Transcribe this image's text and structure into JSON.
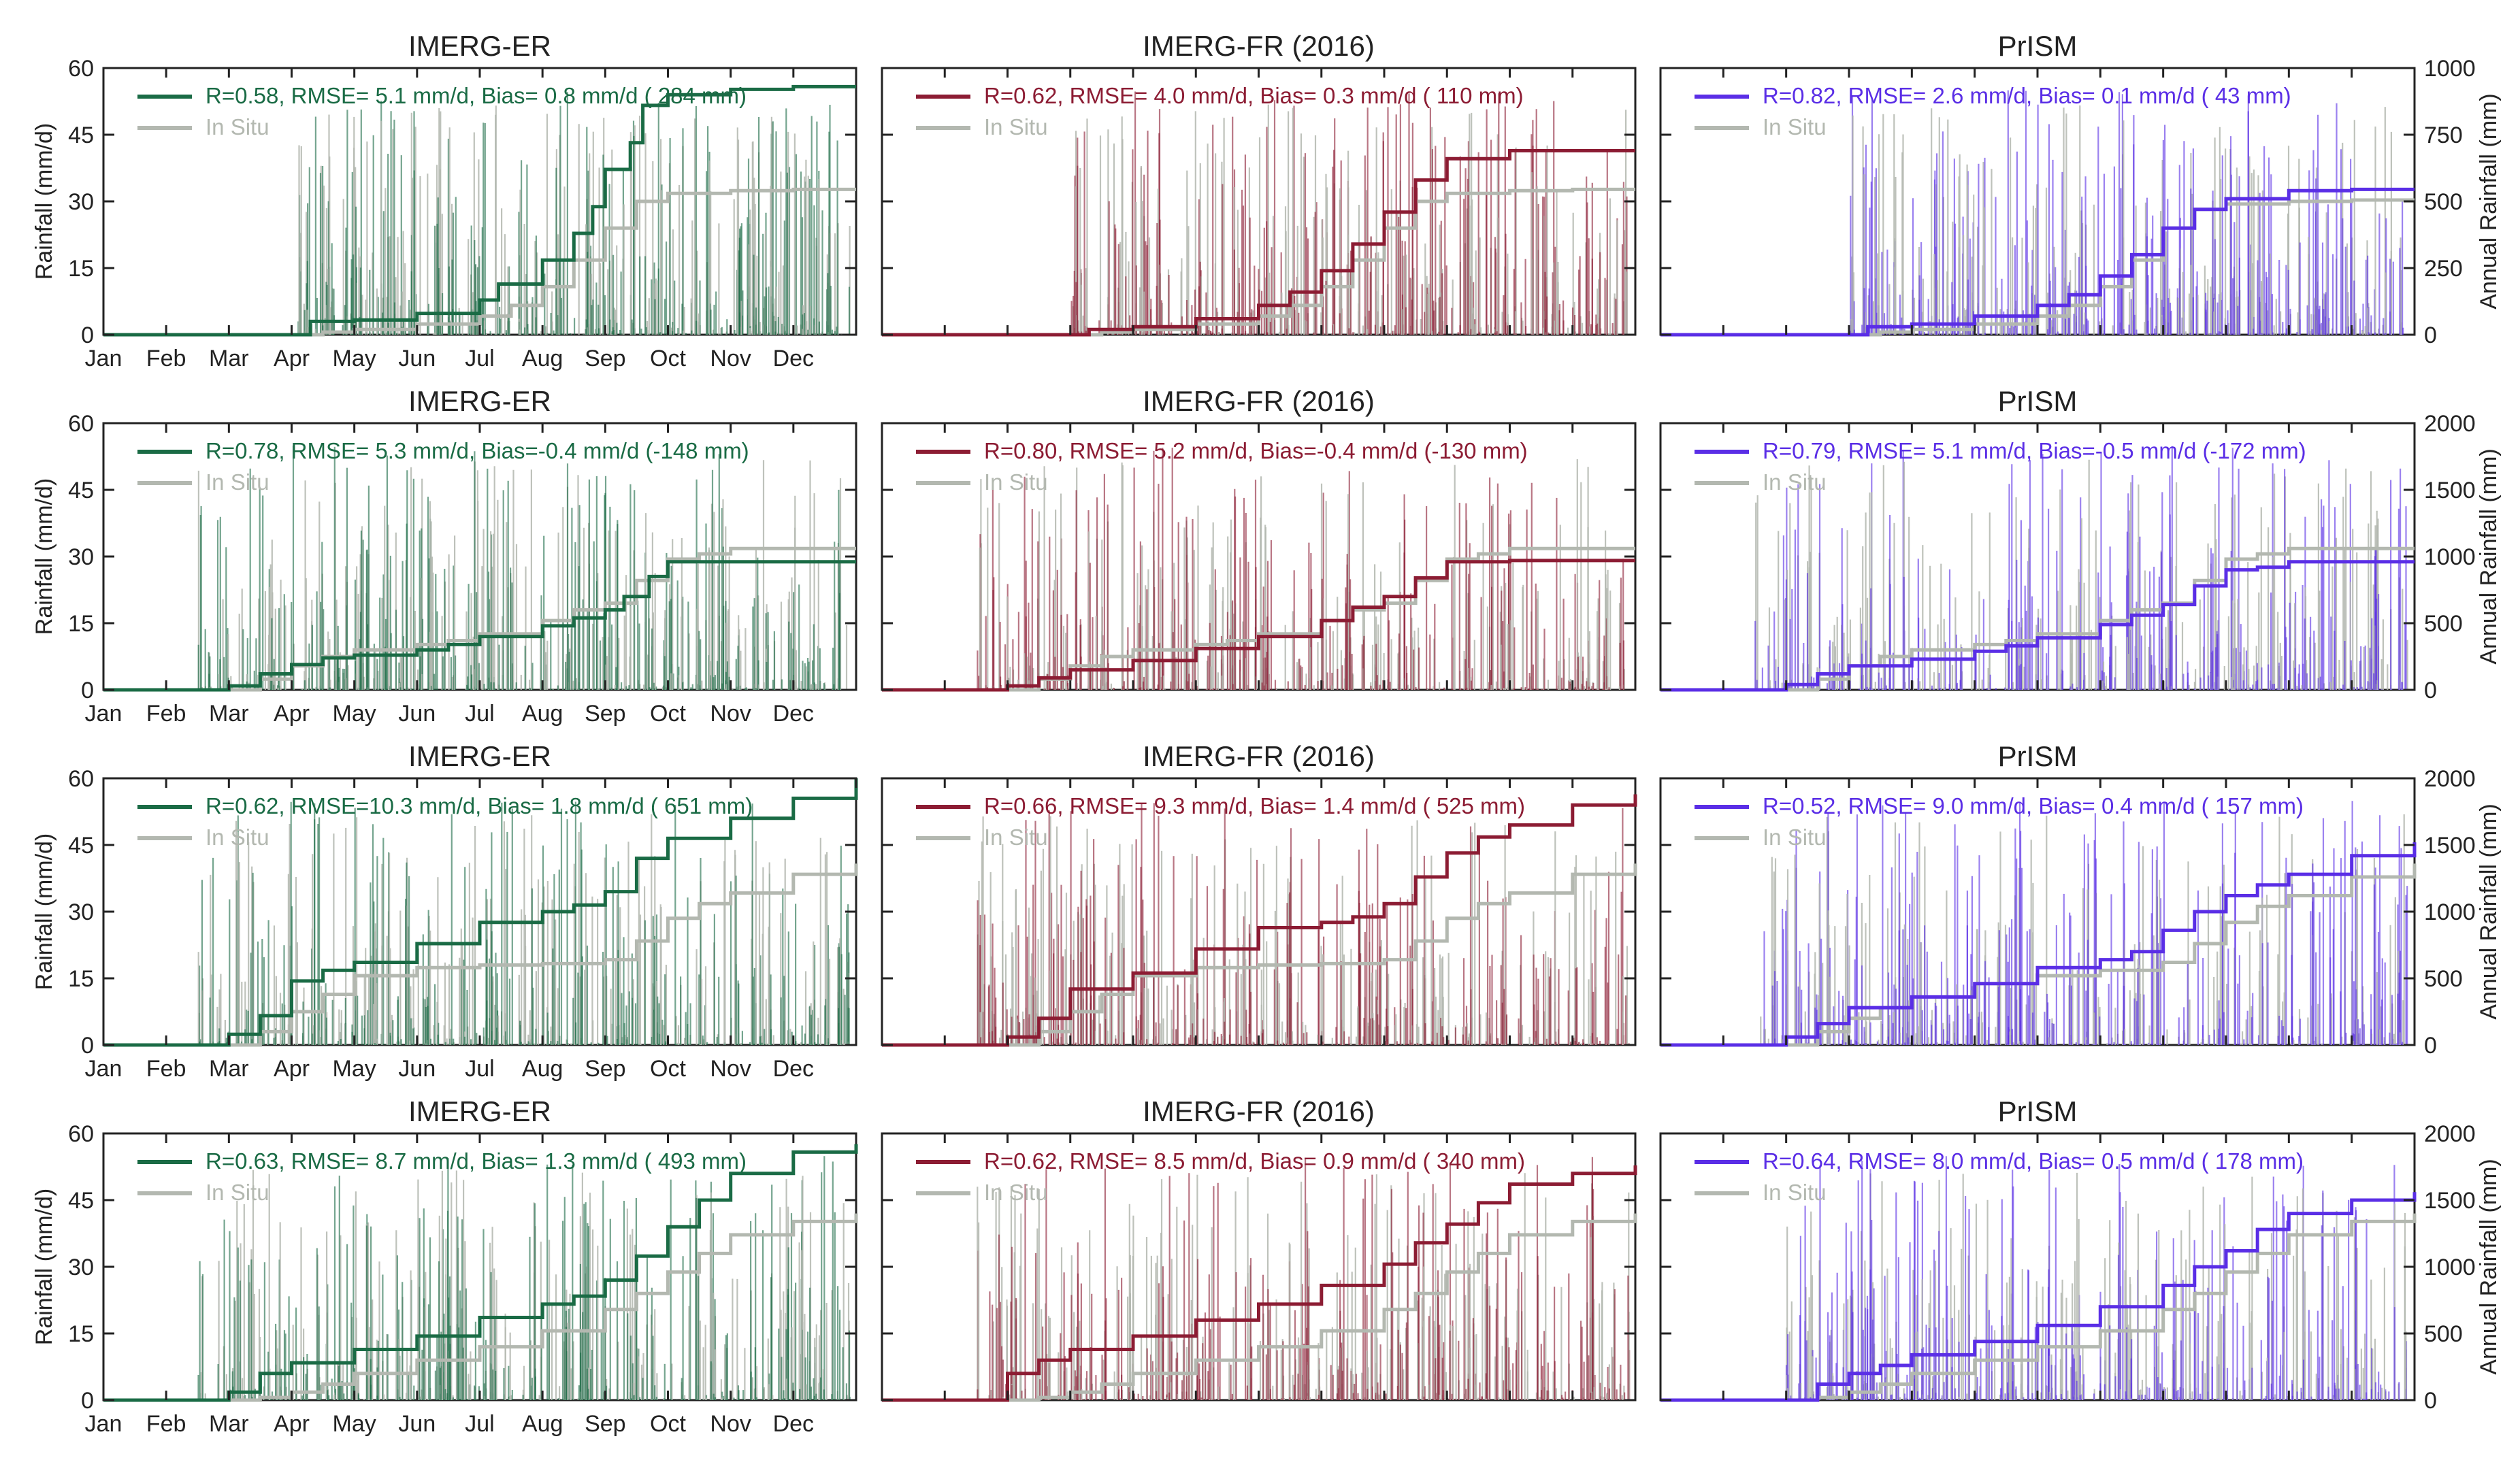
{
  "figure": {
    "ylabel_left": "Rainfall (mm/d)",
    "ylabel_right": "Annual Rainfall (mm)",
    "months": [
      "Jan",
      "Feb",
      "Mar",
      "Apr",
      "May",
      "Jun",
      "Jul",
      "Aug",
      "Sep",
      "Oct",
      "Nov",
      "Dec"
    ]
  },
  "colors": {
    "in_situ": "#b3b8b0",
    "imerg_er": "#1a6b45",
    "imerg_fr": "#8c1c33",
    "prism": "#5a2ee6",
    "axis": "#222222"
  },
  "chart_data": [
    {
      "type": "line",
      "row": 1,
      "col": 1,
      "title": "IMERG-ER",
      "product": "imerg_er",
      "stats": "R=0.58, RMSE= 5.1 mm/d, Bias= 0.8 mm/d ( 284 mm)",
      "legend_insitu": "In Situ",
      "ylim": [
        0,
        60
      ],
      "yticks": [
        0,
        15,
        30,
        45,
        60
      ],
      "y2lim": [
        0,
        1000
      ],
      "y2ticks": [],
      "cum_product_x": [
        0,
        3,
        3.3,
        4,
        5,
        6,
        6.3,
        7,
        7.5,
        7.8,
        8,
        8.4,
        8.6,
        9,
        10,
        11,
        12
      ],
      "cum_product_y": [
        0,
        0,
        50,
        55,
        80,
        130,
        190,
        280,
        380,
        480,
        620,
        720,
        860,
        900,
        920,
        930,
        930
      ],
      "cum_insitu_x": [
        0,
        3,
        3.5,
        4,
        5,
        6,
        6.5,
        7,
        7.5,
        8,
        8.5,
        9,
        10,
        11,
        12
      ],
      "cum_insitu_y": [
        0,
        0,
        10,
        20,
        40,
        70,
        110,
        180,
        280,
        400,
        500,
        530,
        540,
        545,
        545
      ]
    },
    {
      "type": "line",
      "row": 1,
      "col": 2,
      "title": "IMERG-FR (2016)",
      "product": "imerg_fr",
      "stats": "R=0.62, RMSE= 4.0 mm/d, Bias= 0.3 mm/d ( 110 mm)",
      "legend_insitu": "In Situ",
      "ylim": [
        0,
        60
      ],
      "yticks": [],
      "y2lim": [
        0,
        1000
      ],
      "y2ticks": [],
      "cum_product_x": [
        0,
        3,
        3.3,
        4,
        5,
        6,
        6.5,
        7,
        7.5,
        8,
        8.5,
        9,
        10,
        11,
        12
      ],
      "cum_product_y": [
        0,
        0,
        20,
        30,
        60,
        110,
        160,
        240,
        340,
        460,
        580,
        660,
        690,
        690,
        690
      ],
      "cum_insitu_x": [
        0,
        3,
        3.5,
        4,
        5,
        6,
        6.5,
        7,
        7.5,
        8,
        8.5,
        9,
        10,
        11,
        12
      ],
      "cum_insitu_y": [
        0,
        0,
        10,
        20,
        40,
        70,
        110,
        180,
        280,
        400,
        500,
        530,
        540,
        545,
        545
      ]
    },
    {
      "type": "line",
      "row": 1,
      "col": 3,
      "title": "PrISM",
      "product": "prism",
      "stats": "R=0.82, RMSE= 2.6 mm/d, Bias= 0.1 mm/d (  43 mm)",
      "legend_insitu": "In Situ",
      "ylim": [
        0,
        60
      ],
      "yticks": [],
      "y2lim": [
        0,
        1000
      ],
      "y2ticks": [
        0,
        250,
        500,
        750,
        1000
      ],
      "cum_product_x": [
        0,
        3,
        3.3,
        4,
        5,
        6,
        6.5,
        7,
        7.5,
        8,
        8.5,
        9,
        10,
        11,
        12
      ],
      "cum_product_y": [
        0,
        0,
        30,
        40,
        70,
        110,
        150,
        220,
        300,
        400,
        470,
        510,
        540,
        545,
        545
      ],
      "cum_insitu_x": [
        0,
        3,
        3.5,
        4,
        5,
        6,
        6.5,
        7,
        7.5,
        8,
        8.5,
        9,
        10,
        11,
        12
      ],
      "cum_insitu_y": [
        0,
        0,
        10,
        20,
        40,
        70,
        110,
        180,
        280,
        400,
        470,
        490,
        500,
        505,
        505
      ]
    },
    {
      "type": "line",
      "row": 2,
      "col": 1,
      "title": "IMERG-ER",
      "product": "imerg_er",
      "stats": "R=0.78, RMSE= 5.3 mm/d, Bias=-0.4 mm/d (-148 mm)",
      "legend_insitu": "In Situ",
      "ylim": [
        0,
        60
      ],
      "yticks": [
        0,
        15,
        30,
        45,
        60
      ],
      "y2lim": [
        0,
        2000
      ],
      "y2ticks": [],
      "cum_product_x": [
        0,
        1.5,
        2,
        2.5,
        3,
        3.5,
        4,
        5,
        5.5,
        6,
        7,
        7.5,
        8,
        8.3,
        8.7,
        9,
        10,
        11,
        12
      ],
      "cum_product_y": [
        0,
        0,
        30,
        120,
        190,
        240,
        260,
        300,
        340,
        400,
        480,
        540,
        600,
        700,
        850,
        960,
        960,
        960,
        960
      ],
      "cum_insitu_x": [
        0,
        2,
        2.5,
        3,
        3.5,
        4,
        5,
        5.5,
        6,
        7,
        7.5,
        8,
        8.5,
        9,
        9.5,
        10,
        11,
        12
      ],
      "cum_insitu_y": [
        0,
        0,
        80,
        180,
        250,
        300,
        340,
        370,
        420,
        520,
        600,
        650,
        820,
        980,
        1020,
        1060,
        1060,
        1060
      ]
    },
    {
      "type": "line",
      "row": 2,
      "col": 2,
      "title": "IMERG-FR (2016)",
      "product": "imerg_fr",
      "stats": "R=0.80, RMSE= 5.2 mm/d, Bias=-0.4 mm/d (-130 mm)",
      "legend_insitu": "In Situ",
      "ylim": [
        0,
        60
      ],
      "yticks": [],
      "y2lim": [
        0,
        2000
      ],
      "y2ticks": [],
      "cum_product_x": [
        0,
        1.5,
        2,
        2.5,
        3,
        4,
        5,
        6,
        7,
        7.5,
        8,
        8.5,
        9,
        10,
        11,
        12
      ],
      "cum_product_y": [
        0,
        0,
        30,
        90,
        150,
        220,
        310,
        400,
        520,
        620,
        700,
        840,
        960,
        970,
        970,
        970
      ],
      "cum_insitu_x": [
        0,
        2,
        2.5,
        3,
        3.5,
        4,
        5,
        5.5,
        6,
        7,
        7.5,
        8,
        8.5,
        9,
        9.5,
        10,
        11,
        12
      ],
      "cum_insitu_y": [
        0,
        0,
        80,
        180,
        250,
        300,
        340,
        370,
        420,
        520,
        600,
        650,
        820,
        980,
        1020,
        1060,
        1060,
        1060
      ]
    },
    {
      "type": "line",
      "row": 2,
      "col": 3,
      "title": "PrISM",
      "product": "prism",
      "stats": "R=0.79, RMSE= 5.1 mm/d, Bias=-0.5 mm/d (-172 mm)",
      "legend_insitu": "In Situ",
      "ylim": [
        0,
        60
      ],
      "yticks": [],
      "y2lim": [
        0,
        2000
      ],
      "y2ticks": [
        0,
        500,
        1000,
        1500,
        2000
      ],
      "cum_product_x": [
        0,
        1.5,
        2,
        2.5,
        3,
        4,
        5,
        5.5,
        6,
        7,
        7.5,
        8,
        8.5,
        9,
        9.5,
        10,
        11,
        12
      ],
      "cum_product_y": [
        0,
        0,
        40,
        120,
        180,
        230,
        290,
        330,
        390,
        490,
        560,
        640,
        780,
        900,
        920,
        960,
        960,
        960
      ],
      "cum_insitu_x": [
        0,
        2,
        2.5,
        3,
        3.5,
        4,
        5,
        5.5,
        6,
        7,
        7.5,
        8,
        8.5,
        9,
        9.5,
        10,
        11,
        12
      ],
      "cum_insitu_y": [
        0,
        0,
        80,
        180,
        250,
        300,
        340,
        370,
        420,
        520,
        600,
        650,
        820,
        980,
        1020,
        1060,
        1060,
        1060
      ]
    },
    {
      "type": "line",
      "row": 3,
      "col": 1,
      "title": "IMERG-ER",
      "product": "imerg_er",
      "stats": "R=0.62, RMSE=10.3 mm/d, Bias= 1.8 mm/d ( 651 mm)",
      "legend_insitu": "In Situ",
      "ylim": [
        0,
        60
      ],
      "yticks": [
        0,
        15,
        30,
        45,
        60
      ],
      "y2lim": [
        0,
        2000
      ],
      "y2ticks": [],
      "cum_product_x": [
        0,
        1.5,
        2,
        2.5,
        3,
        3.5,
        4,
        5,
        6,
        7,
        7.5,
        8,
        8.5,
        9,
        10,
        11,
        12
      ],
      "cum_product_y": [
        0,
        0,
        80,
        220,
        480,
        560,
        620,
        760,
        920,
        1000,
        1050,
        1150,
        1400,
        1550,
        1700,
        1850,
        2000
      ],
      "cum_insitu_x": [
        0,
        2,
        2.5,
        3,
        3.5,
        4,
        5,
        6,
        7,
        8,
        8.5,
        9,
        9.5,
        10,
        11,
        12
      ],
      "cum_insitu_y": [
        0,
        0,
        100,
        250,
        380,
        520,
        580,
        600,
        610,
        640,
        780,
        950,
        1060,
        1140,
        1280,
        1360
      ]
    },
    {
      "type": "line",
      "row": 3,
      "col": 2,
      "title": "IMERG-FR (2016)",
      "product": "imerg_fr",
      "stats": "R=0.66, RMSE= 9.3 mm/d, Bias= 1.4 mm/d ( 525 mm)",
      "legend_insitu": "In Situ",
      "ylim": [
        0,
        60
      ],
      "yticks": [],
      "y2lim": [
        0,
        2000
      ],
      "y2ticks": [],
      "cum_product_x": [
        0,
        1.5,
        2,
        2.5,
        3,
        4,
        5,
        6,
        7,
        7.5,
        8,
        8.5,
        9,
        9.5,
        10,
        11,
        12
      ],
      "cum_product_y": [
        0,
        0,
        60,
        200,
        420,
        540,
        720,
        880,
        920,
        960,
        1060,
        1260,
        1440,
        1560,
        1650,
        1800,
        1880
      ],
      "cum_insitu_x": [
        0,
        2,
        2.5,
        3,
        3.5,
        4,
        5,
        6,
        7,
        8,
        8.5,
        9,
        9.5,
        10,
        11,
        12
      ],
      "cum_insitu_y": [
        0,
        0,
        100,
        250,
        380,
        520,
        580,
        600,
        610,
        640,
        780,
        950,
        1060,
        1140,
        1280,
        1360
      ]
    },
    {
      "type": "line",
      "row": 3,
      "col": 3,
      "title": "PrISM",
      "product": "prism",
      "stats": "R=0.52, RMSE= 9.0 mm/d, Bias= 0.4 mm/d ( 157 mm)",
      "legend_insitu": "In Situ",
      "ylim": [
        0,
        60
      ],
      "yticks": [],
      "y2lim": [
        0,
        2000
      ],
      "y2ticks": [
        0,
        500,
        1000,
        1500,
        2000
      ],
      "cum_product_x": [
        0,
        1.5,
        2,
        2.5,
        3,
        4,
        5,
        6,
        7,
        7.5,
        8,
        8.5,
        9,
        9.5,
        10,
        11,
        12
      ],
      "cum_product_y": [
        0,
        0,
        60,
        160,
        280,
        360,
        460,
        580,
        640,
        700,
        860,
        1000,
        1120,
        1200,
        1280,
        1420,
        1520
      ],
      "cum_insitu_x": [
        0,
        2,
        2.5,
        3,
        3.5,
        4,
        5,
        6,
        7,
        8,
        8.5,
        9,
        9.5,
        10,
        11,
        12
      ],
      "cum_insitu_y": [
        0,
        0,
        100,
        200,
        280,
        360,
        460,
        520,
        560,
        620,
        760,
        920,
        1040,
        1120,
        1260,
        1360
      ]
    },
    {
      "type": "line",
      "row": 4,
      "col": 1,
      "title": "IMERG-ER",
      "product": "imerg_er",
      "stats": "R=0.63, RMSE= 8.7 mm/d, Bias= 1.3 mm/d ( 493 mm)",
      "legend_insitu": "In Situ",
      "ylim": [
        0,
        60
      ],
      "yticks": [
        0,
        15,
        30,
        45,
        60
      ],
      "y2lim": [
        0,
        2000
      ],
      "y2ticks": [],
      "cum_product_x": [
        0,
        1.5,
        2,
        2.5,
        3,
        4,
        5,
        6,
        7,
        7.5,
        8,
        8.5,
        9,
        9.5,
        10,
        11,
        12
      ],
      "cum_product_y": [
        0,
        0,
        60,
        200,
        280,
        380,
        480,
        620,
        720,
        780,
        900,
        1080,
        1300,
        1500,
        1700,
        1860,
        1920
      ],
      "cum_insitu_x": [
        0,
        2,
        2.5,
        3,
        3.5,
        4,
        5,
        6,
        7,
        8,
        8.5,
        9,
        9.5,
        10,
        11,
        12
      ],
      "cum_insitu_y": [
        0,
        0,
        20,
        60,
        120,
        200,
        300,
        400,
        520,
        680,
        800,
        960,
        1100,
        1240,
        1340,
        1400
      ]
    },
    {
      "type": "line",
      "row": 4,
      "col": 2,
      "title": "IMERG-FR (2016)",
      "product": "imerg_fr",
      "stats": "R=0.62, RMSE= 8.5 mm/d, Bias= 0.9 mm/d ( 340 mm)",
      "legend_insitu": "In Situ",
      "ylim": [
        0,
        60
      ],
      "yticks": [],
      "y2lim": [
        0,
        2000
      ],
      "y2ticks": [],
      "cum_product_x": [
        0,
        1.5,
        2,
        2.5,
        3,
        4,
        5,
        6,
        7,
        8,
        8.5,
        9,
        9.5,
        10,
        11,
        12
      ],
      "cum_product_y": [
        0,
        0,
        200,
        300,
        380,
        480,
        600,
        720,
        860,
        1020,
        1180,
        1320,
        1480,
        1620,
        1700,
        1760
      ],
      "cum_insitu_x": [
        0,
        2,
        2.5,
        3,
        3.5,
        4,
        5,
        6,
        7,
        8,
        8.5,
        9,
        9.5,
        10,
        11,
        12
      ],
      "cum_insitu_y": [
        0,
        0,
        20,
        60,
        120,
        200,
        300,
        400,
        520,
        680,
        800,
        960,
        1100,
        1240,
        1340,
        1400
      ]
    },
    {
      "type": "line",
      "row": 4,
      "col": 3,
      "title": "PrISM",
      "product": "prism",
      "stats": "R=0.64, RMSE= 8.0 mm/d, Bias= 0.5 mm/d ( 178 mm)",
      "legend_insitu": "In Situ",
      "ylim": [
        0,
        60
      ],
      "yticks": [],
      "y2lim": [
        0,
        2000
      ],
      "y2ticks": [
        0,
        500,
        1000,
        1500,
        2000
      ],
      "cum_product_x": [
        0,
        2,
        2.5,
        3,
        3.5,
        4,
        5,
        6,
        7,
        8,
        8.5,
        9,
        9.5,
        10,
        11,
        12
      ],
      "cum_product_y": [
        0,
        0,
        120,
        200,
        260,
        340,
        440,
        560,
        700,
        860,
        1000,
        1120,
        1280,
        1400,
        1500,
        1560
      ],
      "cum_insitu_x": [
        0,
        2,
        2.5,
        3,
        3.5,
        4,
        5,
        6,
        7,
        8,
        8.5,
        9,
        9.5,
        10,
        11,
        12
      ],
      "cum_insitu_y": [
        0,
        0,
        20,
        60,
        120,
        200,
        300,
        400,
        520,
        680,
        800,
        960,
        1100,
        1240,
        1340,
        1400
      ]
    }
  ]
}
